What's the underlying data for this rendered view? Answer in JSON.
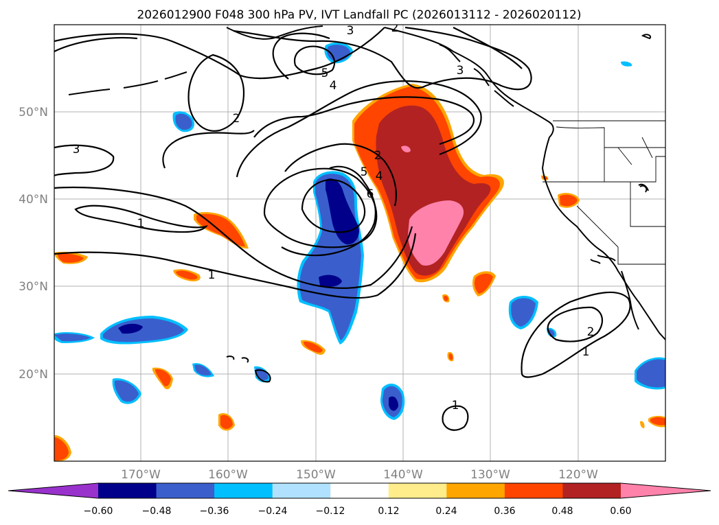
{
  "title": "2026012900 F048 300 hPa PV, IVT Landfall PC (2026013112 - 2026020112)",
  "map": {
    "lat_labels": [
      "50°N",
      "40°N",
      "30°N",
      "20°N"
    ],
    "lon_labels": [
      "170°W",
      "160°W",
      "150°W",
      "140°W",
      "130°W",
      "120°W"
    ],
    "contour_labels": [
      "2",
      "3",
      "5",
      "4",
      "3",
      "2",
      "3",
      "2",
      "4",
      "5",
      "6",
      "1",
      "1",
      "1",
      "2",
      "1"
    ]
  },
  "colorbar": {
    "tick_labels": [
      "−0.60",
      "−0.48",
      "−0.36",
      "−0.24",
      "−0.12",
      "0.12",
      "0.24",
      "0.36",
      "0.48",
      "0.60"
    ],
    "colors": [
      "#9932cc",
      "#00008b",
      "#3a5fcd",
      "#00bfff",
      "#b0e2ff",
      "#ffffff",
      "#ffec8b",
      "#ffa500",
      "#ff4500",
      "#b22222",
      "#ff82ab"
    ]
  }
}
